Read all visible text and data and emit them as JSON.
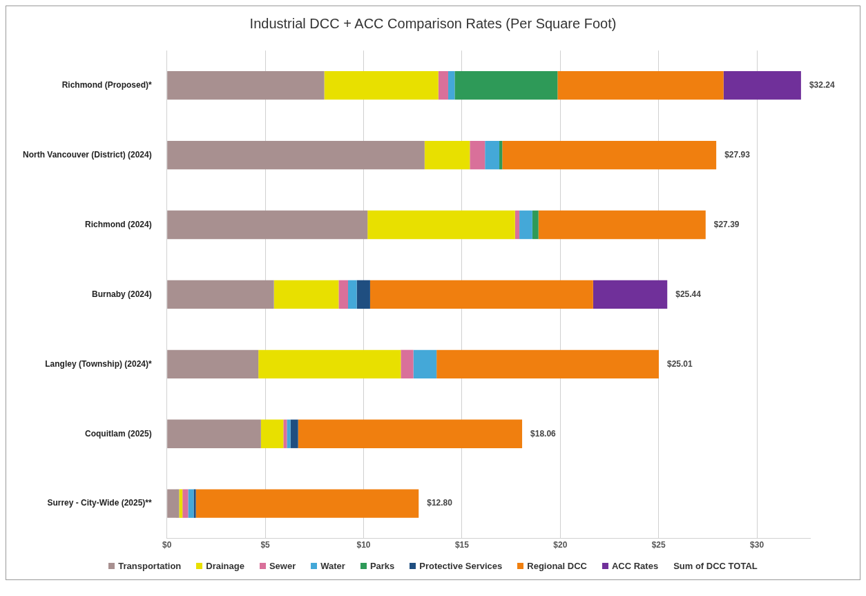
{
  "chart_data": {
    "type": "bar",
    "orientation": "horizontal",
    "stacked": true,
    "title": "Industrial DCC  + ACC Comparison Rates (Per Square Foot)",
    "categories": [
      "Richmond (Proposed)*",
      "North Vancouver (District) (2024)",
      "Richmond (2024)",
      "Burnaby (2024)",
      "Langley (Township) (2024)*",
      "Coquitlam (2025)",
      "Surrey - City-Wide (2025)**"
    ],
    "series": [
      {
        "name": "Transportation",
        "color": "#a89090",
        "values": [
          8.0,
          13.1,
          10.2,
          5.44,
          4.65,
          4.78,
          0.62
        ]
      },
      {
        "name": "Drainage",
        "color": "#e8e000",
        "values": [
          5.8,
          2.3,
          7.5,
          3.29,
          7.24,
          1.14,
          0.17
        ]
      },
      {
        "name": "Sewer",
        "color": "#d9709a",
        "values": [
          0.5,
          0.77,
          0.22,
          0.48,
          0.64,
          0.18,
          0.29
        ]
      },
      {
        "name": "Water",
        "color": "#44a8d8",
        "values": [
          0.33,
          0.73,
          0.66,
          0.44,
          1.18,
          0.18,
          0.28
        ]
      },
      {
        "name": "Parks",
        "color": "#2e9a58",
        "values": [
          5.23,
          0.15,
          0.31,
          null,
          null,
          null,
          null
        ]
      },
      {
        "name": "Protective Services",
        "color": "#1f4e80",
        "values": [
          null,
          null,
          null,
          0.68,
          null,
          0.39,
          0.11
        ]
      },
      {
        "name": "Regional DCC",
        "color": "#f07f0f",
        "values": [
          8.44,
          10.88,
          8.5,
          11.34,
          11.3,
          11.39,
          11.33
        ]
      },
      {
        "name": "ACC Rates",
        "color": "#70309a",
        "values": [
          3.94,
          null,
          null,
          3.77,
          null,
          null,
          null
        ]
      }
    ],
    "totals": [
      "$32.24",
      "$27.93",
      "$27.39",
      "$25.44",
      "$25.01",
      "$18.06",
      "$12.80"
    ],
    "annotations": [
      "Sum of DCC TOTAL"
    ],
    "xlim": [
      0,
      32.7
    ],
    "xticks": [
      {
        "value": 0,
        "label": "$0"
      },
      {
        "value": 5,
        "label": "$5"
      },
      {
        "value": 10,
        "label": "$10"
      },
      {
        "value": 15,
        "label": "$15"
      },
      {
        "value": 20,
        "label": "$20"
      },
      {
        "value": 25,
        "label": "$25"
      },
      {
        "value": 30,
        "label": "$30"
      }
    ],
    "grid": "x",
    "legend": "bottom"
  }
}
